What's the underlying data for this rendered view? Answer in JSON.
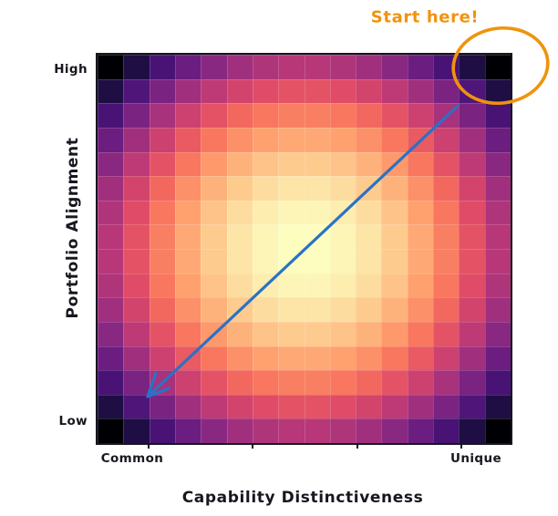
{
  "chart_data": {
    "type": "heatmap",
    "xlabel": "Capability Distinctiveness",
    "ylabel": "Portfolio Alignment",
    "x_tick_labels": [
      "Common",
      "Unique"
    ],
    "y_tick_labels": [
      "High",
      "Low"
    ],
    "grid_size": [
      16,
      16
    ],
    "legend": "none",
    "values": [
      [
        0.121,
        0.23,
        0.324,
        0.402,
        0.465,
        0.512,
        0.543,
        0.559,
        0.559,
        0.543,
        0.512,
        0.465,
        0.402,
        0.324,
        0.23,
        0.121
      ],
      [
        0.23,
        0.34,
        0.434,
        0.512,
        0.574,
        0.621,
        0.652,
        0.668,
        0.668,
        0.652,
        0.621,
        0.574,
        0.512,
        0.434,
        0.34,
        0.23
      ],
      [
        0.324,
        0.434,
        0.527,
        0.605,
        0.668,
        0.715,
        0.746,
        0.762,
        0.762,
        0.746,
        0.715,
        0.668,
        0.605,
        0.527,
        0.434,
        0.324
      ],
      [
        0.402,
        0.512,
        0.605,
        0.684,
        0.746,
        0.793,
        0.824,
        0.84,
        0.84,
        0.824,
        0.793,
        0.746,
        0.684,
        0.605,
        0.512,
        0.402
      ],
      [
        0.465,
        0.574,
        0.668,
        0.746,
        0.809,
        0.855,
        0.887,
        0.902,
        0.902,
        0.887,
        0.855,
        0.809,
        0.746,
        0.668,
        0.574,
        0.465
      ],
      [
        0.512,
        0.621,
        0.715,
        0.793,
        0.855,
        0.902,
        0.934,
        0.949,
        0.949,
        0.934,
        0.902,
        0.855,
        0.793,
        0.715,
        0.621,
        0.512
      ],
      [
        0.543,
        0.652,
        0.746,
        0.824,
        0.887,
        0.934,
        0.965,
        0.98,
        0.98,
        0.965,
        0.934,
        0.887,
        0.824,
        0.746,
        0.652,
        0.543
      ],
      [
        0.559,
        0.668,
        0.762,
        0.84,
        0.902,
        0.949,
        0.98,
        0.996,
        0.996,
        0.98,
        0.949,
        0.902,
        0.84,
        0.762,
        0.668,
        0.559
      ],
      [
        0.559,
        0.668,
        0.762,
        0.84,
        0.902,
        0.949,
        0.98,
        0.996,
        0.996,
        0.98,
        0.949,
        0.902,
        0.84,
        0.762,
        0.668,
        0.559
      ],
      [
        0.543,
        0.652,
        0.746,
        0.824,
        0.887,
        0.934,
        0.965,
        0.98,
        0.98,
        0.965,
        0.934,
        0.887,
        0.824,
        0.746,
        0.652,
        0.543
      ],
      [
        0.512,
        0.621,
        0.715,
        0.793,
        0.855,
        0.902,
        0.934,
        0.949,
        0.949,
        0.934,
        0.902,
        0.855,
        0.793,
        0.715,
        0.621,
        0.512
      ],
      [
        0.465,
        0.574,
        0.668,
        0.746,
        0.809,
        0.855,
        0.887,
        0.902,
        0.902,
        0.887,
        0.855,
        0.809,
        0.746,
        0.668,
        0.574,
        0.465
      ],
      [
        0.402,
        0.512,
        0.605,
        0.684,
        0.746,
        0.793,
        0.824,
        0.84,
        0.84,
        0.824,
        0.793,
        0.746,
        0.684,
        0.605,
        0.512,
        0.402
      ],
      [
        0.324,
        0.434,
        0.527,
        0.605,
        0.668,
        0.715,
        0.746,
        0.762,
        0.762,
        0.746,
        0.715,
        0.668,
        0.605,
        0.527,
        0.434,
        0.324
      ],
      [
        0.23,
        0.34,
        0.434,
        0.512,
        0.574,
        0.621,
        0.652,
        0.668,
        0.668,
        0.652,
        0.621,
        0.574,
        0.512,
        0.434,
        0.34,
        0.23
      ],
      [
        0.121,
        0.23,
        0.324,
        0.402,
        0.465,
        0.512,
        0.543,
        0.559,
        0.559,
        0.543,
        0.512,
        0.465,
        0.402,
        0.324,
        0.23,
        0.121
      ]
    ],
    "colormap": {
      "name": "magma",
      "domain": [
        0.121,
        0.996
      ],
      "stops": [
        {
          "pos": 0.0,
          "color": "#000004"
        },
        {
          "pos": 0.1,
          "color": "#140E36"
        },
        {
          "pos": 0.2,
          "color": "#3B0F70"
        },
        {
          "pos": 0.3,
          "color": "#641A80"
        },
        {
          "pos": 0.4,
          "color": "#8C2981"
        },
        {
          "pos": 0.5,
          "color": "#B73779"
        },
        {
          "pos": 0.6,
          "color": "#DE4968"
        },
        {
          "pos": 0.7,
          "color": "#F7705C"
        },
        {
          "pos": 0.8,
          "color": "#FE9F6D"
        },
        {
          "pos": 0.9,
          "color": "#FECF92"
        },
        {
          "pos": 1.0,
          "color": "#FCFDBF"
        }
      ]
    }
  },
  "annotations": {
    "start_here": {
      "text": "Start here!",
      "color": "#F0930D"
    },
    "circle": {
      "color": "#F0930D"
    },
    "arrow": {
      "color": "#2A72C6"
    }
  },
  "colors": {
    "text": "#17171f",
    "spine": "#16161f",
    "background": "#ffffff"
  }
}
